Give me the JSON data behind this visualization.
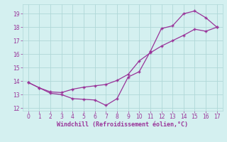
{
  "bg_color": "#d4f0f0",
  "grid_color": "#b0d8d8",
  "line_color": "#993399",
  "xlim": [
    -0.5,
    17.5
  ],
  "ylim": [
    11.8,
    19.7
  ],
  "xticks": [
    0,
    1,
    2,
    3,
    4,
    5,
    6,
    7,
    8,
    9,
    10,
    11,
    12,
    13,
    14,
    15,
    16,
    17
  ],
  "yticks": [
    12,
    13,
    14,
    15,
    16,
    17,
    18,
    19
  ],
  "xlabel": "Windchill (Refroidissement éolien,°C)",
  "line1_x": [
    0,
    1,
    2,
    3,
    4,
    5,
    6,
    7,
    8,
    9,
    10,
    11,
    12,
    13,
    14,
    15,
    16,
    17
  ],
  "line1_y": [
    13.9,
    13.5,
    13.1,
    13.0,
    12.7,
    12.65,
    12.6,
    12.2,
    12.7,
    14.3,
    14.7,
    16.2,
    17.9,
    18.1,
    19.0,
    19.2,
    18.7,
    18.0
  ],
  "line2_x": [
    0,
    1,
    2,
    3,
    4,
    5,
    6,
    7,
    8,
    9,
    10,
    11,
    12,
    13,
    14,
    15,
    16,
    17
  ],
  "line2_y": [
    13.9,
    13.5,
    13.2,
    13.15,
    13.4,
    13.55,
    13.65,
    13.75,
    14.05,
    14.5,
    15.5,
    16.1,
    16.6,
    17.0,
    17.4,
    17.85,
    17.7,
    18.0
  ]
}
